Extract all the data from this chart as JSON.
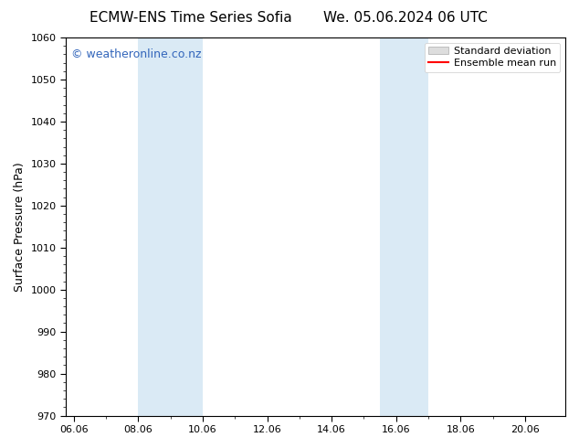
{
  "title_left": "ECMW-ENS Time Series Sofia",
  "title_right": "We. 05.06.2024 06 UTC",
  "ylabel": "Surface Pressure (hPa)",
  "ylim": [
    970,
    1060
  ],
  "yticks": [
    970,
    980,
    990,
    1000,
    1010,
    1020,
    1030,
    1040,
    1050,
    1060
  ],
  "xlim_start": 5.75,
  "xlim_end": 21.25,
  "xtick_labels": [
    "06.06",
    "08.06",
    "10.06",
    "12.06",
    "14.06",
    "16.06",
    "18.06",
    "20.06"
  ],
  "xtick_positions": [
    6.0,
    8.0,
    10.0,
    12.0,
    14.0,
    16.0,
    18.0,
    20.0
  ],
  "shaded_regions": [
    {
      "x_start": 8.0,
      "x_end": 10.0
    },
    {
      "x_start": 15.5,
      "x_end": 17.0
    }
  ],
  "shade_color": "#daeaf5",
  "watermark_text": "© weatheronline.co.nz",
  "watermark_color": "#3366bb",
  "watermark_fontsize": 9,
  "legend_std_label": "Standard deviation",
  "legend_mean_label": "Ensemble mean run",
  "legend_std_facecolor": "#dddddd",
  "legend_std_edgecolor": "#aaaaaa",
  "legend_mean_color": "#ff0000",
  "bg_color": "#ffffff",
  "plot_bg_color": "#ffffff",
  "spine_color": "#000000",
  "title_fontsize": 11,
  "axis_fontsize": 8,
  "ylabel_fontsize": 9,
  "legend_fontsize": 8
}
